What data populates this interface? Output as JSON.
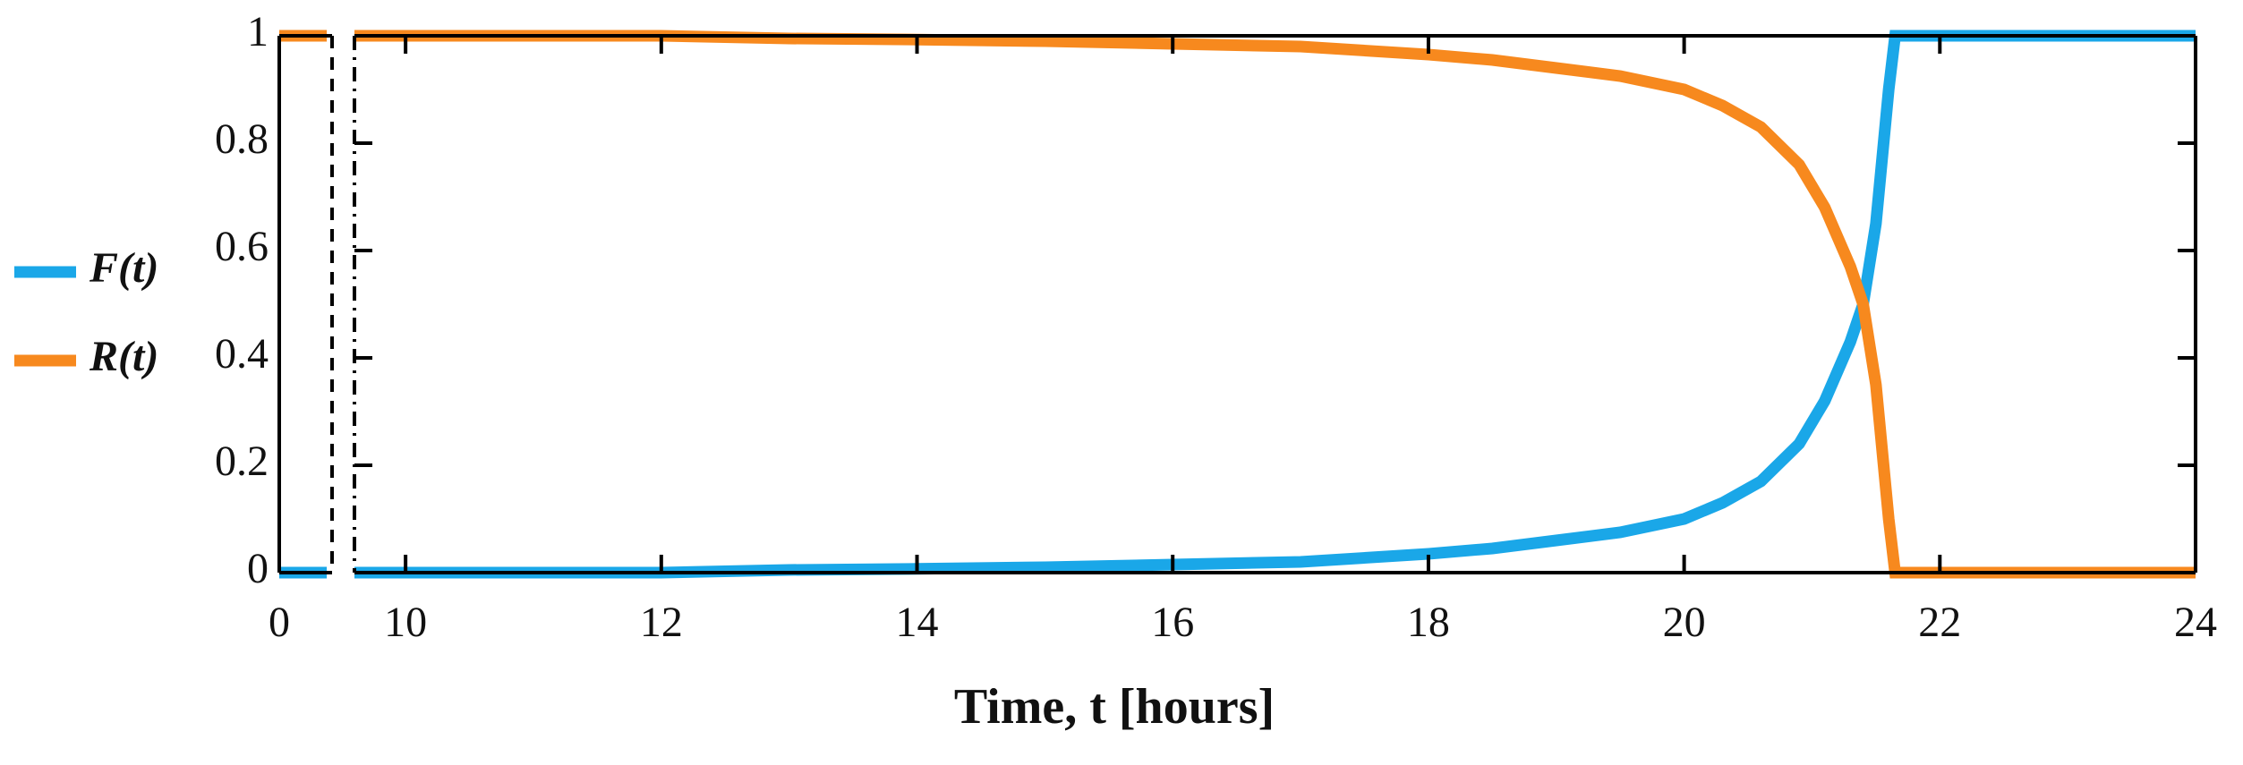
{
  "chart_data": [
    {
      "type": "line",
      "x": [
        0,
        0.45
      ],
      "xlim": [
        0,
        0.5
      ],
      "xticks": [
        0
      ],
      "ylim": [
        0,
        1
      ],
      "yticks": [
        0,
        0.2,
        0.4,
        0.6,
        0.8,
        1
      ],
      "series": [
        {
          "color": "#1aa7e8",
          "values": [
            0,
            0
          ]
        },
        {
          "color": "#f7891e",
          "values": [
            1,
            1
          ]
        }
      ]
    },
    {
      "type": "line",
      "x_label": "Time, t [hours]",
      "x": [
        9.6,
        12,
        13,
        14,
        15,
        16,
        17,
        18,
        18.5,
        19,
        19.5,
        20,
        20.3,
        20.6,
        20.9,
        21.1,
        21.3,
        21.4,
        21.5,
        21.6,
        21.65,
        22,
        24
      ],
      "xlim": [
        9.6,
        24
      ],
      "xticks": [
        10,
        12,
        14,
        16,
        18,
        20,
        22,
        24
      ],
      "ylim": [
        0,
        1
      ],
      "yticks": [
        0,
        0.2,
        0.4,
        0.6,
        0.8,
        1
      ],
      "series": [
        {
          "name": "F(t)",
          "color": "#1aa7e8",
          "values": [
            0,
            0,
            0.005,
            0.007,
            0.01,
            0.015,
            0.02,
            0.035,
            0.045,
            0.06,
            0.075,
            0.1,
            0.13,
            0.17,
            0.24,
            0.32,
            0.43,
            0.5,
            0.65,
            0.9,
            1,
            1,
            1
          ]
        },
        {
          "name": "R(t)",
          "color": "#f7891e",
          "values": [
            1,
            1,
            0.995,
            0.993,
            0.99,
            0.985,
            0.98,
            0.965,
            0.955,
            0.94,
            0.925,
            0.9,
            0.87,
            0.83,
            0.76,
            0.68,
            0.57,
            0.5,
            0.35,
            0.1,
            0,
            0,
            0
          ]
        }
      ]
    }
  ]
}
